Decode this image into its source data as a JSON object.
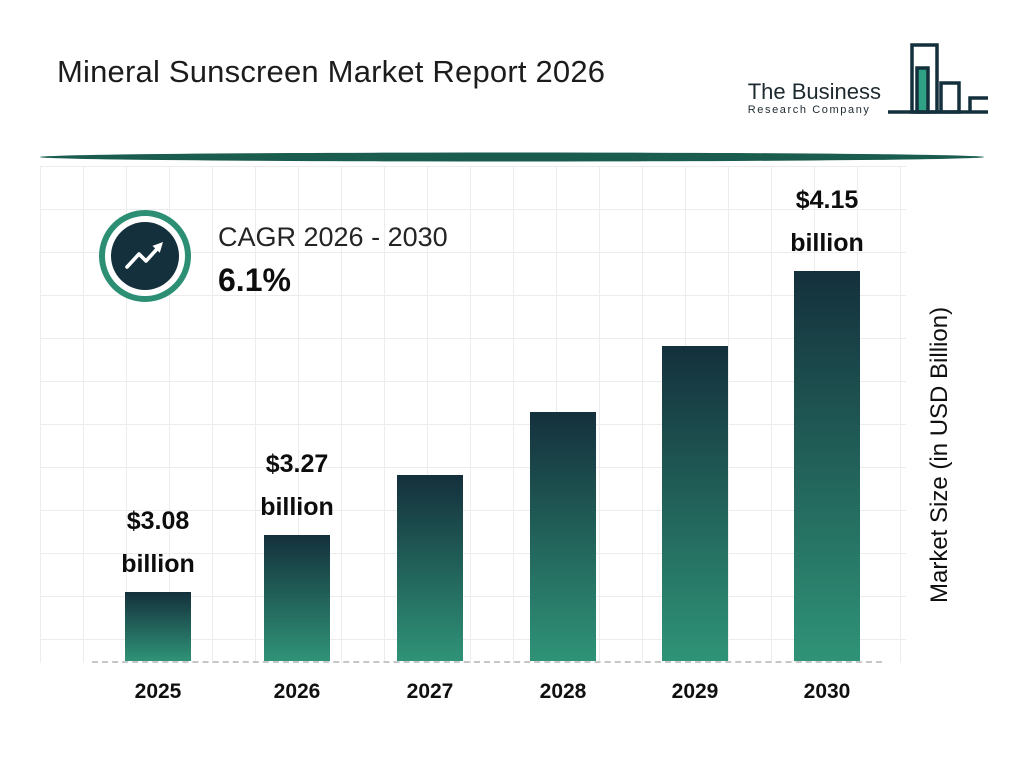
{
  "header": {
    "title": "Mineral Sunscreen Market Report 2026",
    "logo": {
      "line1": "The Business",
      "line2": "Research Company"
    }
  },
  "cagr": {
    "label": "CAGR 2026 - 2030",
    "value": "6.1%"
  },
  "chart_data": {
    "type": "bar",
    "title": "Mineral Sunscreen Market Report 2026",
    "categories": [
      "2025",
      "2026",
      "2027",
      "2028",
      "2029",
      "2030"
    ],
    "values": [
      3.08,
      3.27,
      3.47,
      3.68,
      3.9,
      4.15
    ],
    "bar_labels": [
      "$3.08 billion",
      "$3.27 billion",
      "",
      "",
      "",
      "$4.15 billion"
    ],
    "xlabel": "",
    "ylabel": "Market Size (in USD Billion)",
    "ylim": [
      2.85,
      4.3
    ],
    "grid": true,
    "legend": "none",
    "colors": {
      "bar_top": "#14303c",
      "bar_bottom": "#2f9377",
      "accent_teal": "#2c8f74",
      "dark_navy": "#14303c",
      "divider": "#1a5c4e"
    }
  }
}
